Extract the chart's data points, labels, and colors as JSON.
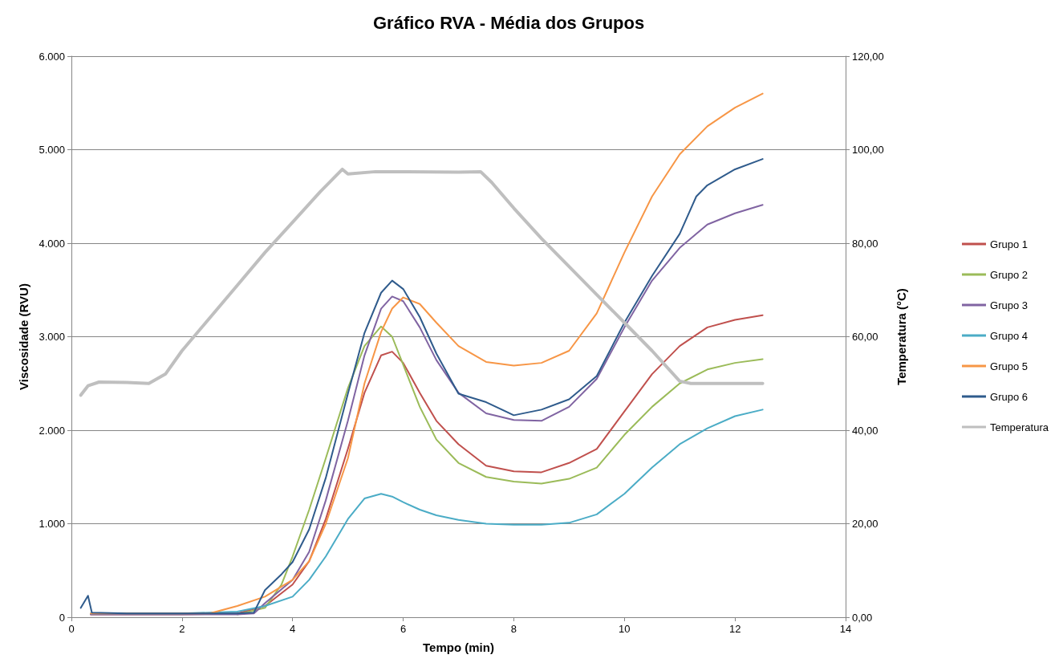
{
  "chart_data": {
    "type": "line",
    "title": "Gráfico RVA - Média dos Grupos",
    "xlabel": "Tempo (min)",
    "ylabel": "Viscosidade (RVU)",
    "y2label": "Temperatura (°C)",
    "xlim": [
      0,
      14
    ],
    "xticks": [
      0,
      2,
      4,
      6,
      8,
      10,
      12,
      14
    ],
    "ylim": [
      0,
      6000
    ],
    "yticks": [
      0,
      {
        "value": 1000,
        "label": "1.000"
      },
      {
        "value": 2000,
        "label": "2.000"
      },
      {
        "value": 3000,
        "label": "3.000"
      },
      {
        "value": 4000,
        "label": "4.000"
      },
      {
        "value": 5000,
        "label": "5.000"
      },
      {
        "value": 6000,
        "label": "6.000"
      }
    ],
    "y2lim": [
      0,
      120
    ],
    "y2ticks": [
      {
        "value": 0,
        "label": "0,00"
      },
      {
        "value": 20,
        "label": "20,00"
      },
      {
        "value": 40,
        "label": "40,00"
      },
      {
        "value": 60,
        "label": "60,00"
      },
      {
        "value": 80,
        "label": "80,00"
      },
      {
        "value": 100,
        "label": "100,00"
      },
      {
        "value": 120,
        "label": "120,00"
      }
    ],
    "grid": "y",
    "legend": "right",
    "marker": "none",
    "line_style": "solid",
    "series": [
      {
        "name": "Grupo 1",
        "color": "#c0504d",
        "x": [
          0.35,
          1,
          2,
          3,
          3.5,
          4,
          4.3,
          4.6,
          5,
          5.3,
          5.6,
          5.8,
          6,
          6.3,
          6.6,
          7,
          7.5,
          8,
          8.5,
          9,
          9.5,
          10,
          10.5,
          11,
          11.5,
          12,
          12.5
        ],
        "values": [
          30,
          30,
          30,
          40,
          120,
          350,
          600,
          1050,
          1800,
          2400,
          2800,
          2840,
          2720,
          2400,
          2100,
          1850,
          1620,
          1560,
          1550,
          1650,
          1800,
          2200,
          2600,
          2900,
          3100,
          3180,
          3230
        ]
      },
      {
        "name": "Grupo 2",
        "color": "#9bbb59",
        "x": [
          3,
          3.5,
          3.8,
          4,
          4.3,
          4.6,
          5,
          5.3,
          5.6,
          5.8,
          6,
          6.3,
          6.6,
          7,
          7.5,
          8,
          8.5,
          9,
          9.5,
          10,
          10.5,
          11,
          11.5,
          12,
          12.5
        ],
        "values": [
          30,
          100,
          350,
          650,
          1150,
          1700,
          2450,
          2900,
          3110,
          3000,
          2700,
          2250,
          1900,
          1650,
          1500,
          1450,
          1430,
          1480,
          1600,
          1950,
          2250,
          2500,
          2650,
          2720,
          2760
        ]
      },
      {
        "name": "Grupo 3",
        "color": "#8064a2",
        "x": [
          0.35,
          1,
          2,
          3,
          3.3,
          3.5,
          4,
          4.3,
          4.6,
          5,
          5.3,
          5.6,
          5.8,
          6,
          6.3,
          6.6,
          7,
          7.5,
          8,
          8.5,
          9,
          9.5,
          10,
          10.5,
          11,
          11.5,
          12,
          12.5
        ],
        "values": [
          30,
          30,
          30,
          30,
          40,
          150,
          400,
          700,
          1250,
          2100,
          2800,
          3300,
          3430,
          3380,
          3100,
          2750,
          2400,
          2180,
          2110,
          2100,
          2250,
          2550,
          3100,
          3600,
          3950,
          4200,
          4320,
          4410
        ]
      },
      {
        "name": "Grupo 4",
        "color": "#4bacc6",
        "x": [
          0.35,
          1,
          2,
          3,
          3.5,
          4,
          4.3,
          4.6,
          5,
          5.3,
          5.6,
          5.8,
          6,
          6.3,
          6.6,
          7,
          7.5,
          8,
          8.5,
          9,
          9.5,
          10,
          10.5,
          11,
          11.5,
          12,
          12.5
        ],
        "values": [
          40,
          40,
          40,
          60,
          120,
          220,
          400,
          650,
          1050,
          1270,
          1320,
          1290,
          1230,
          1150,
          1090,
          1040,
          1000,
          990,
          990,
          1010,
          1100,
          1320,
          1600,
          1850,
          2020,
          2150,
          2220
        ]
      },
      {
        "name": "Grupo 5",
        "color": "#f79646",
        "x": [
          0.35,
          1,
          2,
          2.5,
          3,
          3.5,
          4,
          4.3,
          4.6,
          5,
          5.3,
          5.6,
          5.8,
          6,
          6.3,
          6.6,
          7,
          7.5,
          8,
          8.5,
          9,
          9.5,
          10,
          10.5,
          11,
          11.5,
          12,
          12.5
        ],
        "values": [
          40,
          40,
          40,
          40,
          120,
          220,
          400,
          600,
          1000,
          1700,
          2500,
          3050,
          3300,
          3420,
          3350,
          3150,
          2900,
          2730,
          2690,
          2720,
          2850,
          3250,
          3900,
          4500,
          4950,
          5250,
          5450,
          5600
        ]
      },
      {
        "name": "Grupo 6",
        "color": "#2f5b8c",
        "x": [
          0.17,
          0.3,
          0.37,
          1,
          2,
          3,
          3.3,
          3.5,
          3.8,
          4,
          4.3,
          4.6,
          5,
          5.3,
          5.6,
          5.8,
          6,
          6.3,
          6.6,
          7,
          7.5,
          8,
          8.5,
          9,
          9.5,
          10,
          10.5,
          11,
          11.3,
          11.5,
          12,
          12.5
        ],
        "values": [
          100,
          230,
          50,
          40,
          40,
          40,
          50,
          290,
          460,
          590,
          940,
          1490,
          2390,
          3040,
          3470,
          3600,
          3510,
          3210,
          2820,
          2390,
          2300,
          2160,
          2220,
          2330,
          2580,
          3150,
          3650,
          4100,
          4500,
          4620,
          4790,
          4900
        ]
      },
      {
        "name": "Temperatura",
        "color": "#bfbfbf",
        "axis": "y2",
        "x": [
          0.17,
          0.3,
          0.5,
          1,
          1.4,
          1.7,
          2,
          2.5,
          3,
          3.5,
          4,
          4.5,
          4.9,
          5,
          5.5,
          6,
          7,
          7.4,
          7.6,
          8,
          8.5,
          9,
          9.5,
          10,
          10.5,
          11,
          11.2,
          12,
          12.5
        ],
        "values": [
          47.5,
          49.5,
          50.3,
          50.2,
          50,
          52,
          57,
          64,
          71,
          78,
          84.5,
          91,
          95.8,
          94.8,
          95.3,
          95.3,
          95.2,
          95.3,
          93,
          87.5,
          81,
          75,
          69,
          63,
          57,
          50.5,
          50,
          50,
          50
        ]
      }
    ]
  }
}
